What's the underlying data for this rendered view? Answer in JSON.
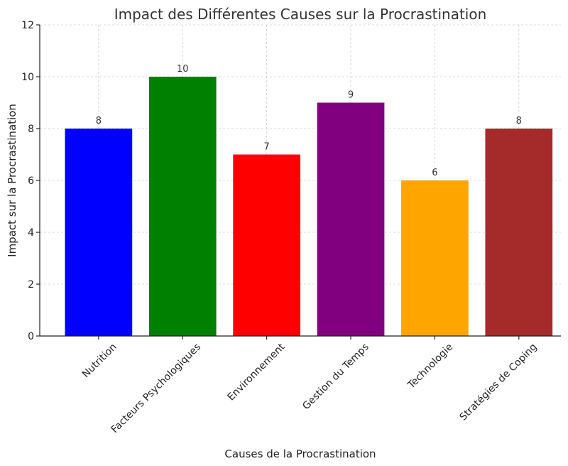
{
  "chart_data": {
    "type": "bar",
    "title": "Impact des Différentes Causes sur la Procrastination",
    "xlabel": "Causes de la Procrastination",
    "ylabel": "Impact sur la Procrastination",
    "categories": [
      "Nutrition",
      "Facteurs Psychologiques",
      "Environnement",
      "Gestion du Temps",
      "Technologie",
      "Stratégies de Coping"
    ],
    "values": [
      8,
      10,
      7,
      9,
      6,
      8
    ],
    "colors": [
      "#0000ff",
      "#008000",
      "#ff0000",
      "#800080",
      "#ffa500",
      "#a52a2a"
    ],
    "ylim": [
      0,
      12
    ],
    "yticks": [
      0,
      2,
      4,
      6,
      8,
      10,
      12
    ],
    "grid": true,
    "legend": "none",
    "xtick_rotation": -45
  }
}
